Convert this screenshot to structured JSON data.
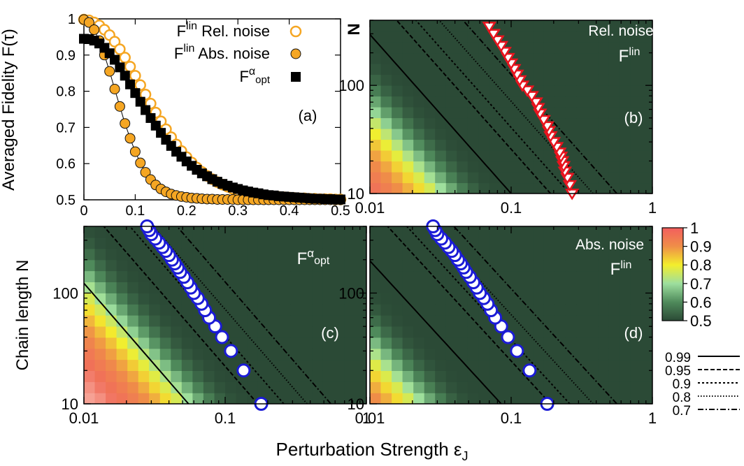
{
  "figure": {
    "xlabel_main": "Perturbation Strength ε",
    "xlabel_sub": "J",
    "ylabel_left_bottom": "Chain length N",
    "ylabel_right_top": "N"
  },
  "colorbar": {
    "ticks": [
      "1",
      "0.9",
      "0.8",
      "0.7",
      "0.6",
      "0.5"
    ],
    "tick_values": [
      1,
      0.9,
      0.8,
      0.7,
      0.6,
      0.5
    ]
  },
  "contour_legend": {
    "items": [
      {
        "label": "0.99",
        "dash": "solid"
      },
      {
        "label": "0.95",
        "dash": "dashed"
      },
      {
        "label": "0.9",
        "dash": "dotted-coarse"
      },
      {
        "label": "0.8",
        "dash": "dotted-fine"
      },
      {
        "label": "0.7",
        "dash": "dash-dot"
      }
    ]
  },
  "chart_data": [
    {
      "panel": "(a)",
      "type": "scatter",
      "ylabel": "Averaged Fidelity F(τ)",
      "xlim": [
        0,
        0.5
      ],
      "ylim": [
        0.5,
        1.0
      ],
      "xticks": [
        "0",
        "0.1",
        "0.2",
        "0.3",
        "0.4",
        "0.5"
      ],
      "yticks": [
        "0.5",
        "0.6",
        "0.7",
        "0.8",
        "0.9",
        "1"
      ],
      "legend": [
        {
          "base": "F",
          "sup": "lin",
          "tail": " Rel. noise",
          "marker": "open-circle",
          "color": "#f5a623"
        },
        {
          "base": "F",
          "sup": "lin",
          "tail": " Abs. noise",
          "marker": "filled-circle",
          "color": "#f5a623"
        },
        {
          "base": "F",
          "sup": "α",
          "sub": "opt",
          "tail": "",
          "marker": "filled-square",
          "color": "#000000"
        }
      ],
      "series": [
        {
          "name": "F^lin Rel. noise",
          "x": [
            0.0,
            0.01,
            0.02,
            0.03,
            0.04,
            0.05,
            0.06,
            0.07,
            0.08,
            0.09,
            0.1,
            0.11,
            0.12,
            0.13,
            0.14,
            0.15,
            0.16,
            0.17,
            0.18,
            0.19,
            0.2,
            0.21,
            0.22,
            0.23,
            0.24,
            0.25,
            0.26,
            0.27,
            0.28,
            0.29,
            0.3,
            0.31,
            0.32,
            0.33,
            0.34,
            0.35,
            0.36,
            0.37,
            0.38,
            0.39,
            0.4,
            0.41,
            0.42,
            0.43,
            0.44,
            0.45,
            0.46,
            0.47,
            0.48,
            0.49,
            0.5
          ],
          "y": [
            0.998,
            0.996,
            0.99,
            0.982,
            0.97,
            0.955,
            0.937,
            0.916,
            0.893,
            0.868,
            0.843,
            0.817,
            0.791,
            0.766,
            0.741,
            0.717,
            0.695,
            0.673,
            0.653,
            0.635,
            0.618,
            0.603,
            0.589,
            0.577,
            0.566,
            0.557,
            0.549,
            0.542,
            0.536,
            0.53,
            0.526,
            0.522,
            0.519,
            0.516,
            0.514,
            0.512,
            0.51,
            0.509,
            0.508,
            0.507,
            0.506,
            0.505,
            0.504,
            0.504,
            0.503,
            0.503,
            0.502,
            0.502,
            0.502,
            0.501,
            0.501
          ]
        },
        {
          "name": "F^lin Abs. noise",
          "x": [
            0.0,
            0.01,
            0.02,
            0.03,
            0.04,
            0.05,
            0.06,
            0.07,
            0.08,
            0.09,
            0.1,
            0.11,
            0.12,
            0.13,
            0.14,
            0.15,
            0.16,
            0.17,
            0.18,
            0.19,
            0.2,
            0.21,
            0.22,
            0.23,
            0.24,
            0.25,
            0.26,
            0.27,
            0.28,
            0.29,
            0.3,
            0.31,
            0.32,
            0.33,
            0.34,
            0.35,
            0.36,
            0.37,
            0.38,
            0.39,
            0.4,
            0.41,
            0.42,
            0.43,
            0.44,
            0.45,
            0.46,
            0.47,
            0.48,
            0.49,
            0.5
          ],
          "y": [
            0.998,
            0.99,
            0.97,
            0.94,
            0.9,
            0.855,
            0.806,
            0.758,
            0.711,
            0.67,
            0.633,
            0.602,
            0.576,
            0.556,
            0.541,
            0.53,
            0.522,
            0.516,
            0.512,
            0.509,
            0.507,
            0.505,
            0.504,
            0.503,
            0.502,
            0.502,
            0.501,
            0.501,
            0.501,
            0.501,
            0.5,
            0.5,
            0.5,
            0.5,
            0.5,
            0.5,
            0.5,
            0.5,
            0.5,
            0.5,
            0.5,
            0.5,
            0.5,
            0.5,
            0.5,
            0.5,
            0.5,
            0.5,
            0.5,
            0.5,
            0.5
          ]
        },
        {
          "name": "F^α_opt",
          "x": [
            0.0,
            0.01,
            0.02,
            0.03,
            0.04,
            0.05,
            0.06,
            0.07,
            0.08,
            0.09,
            0.1,
            0.11,
            0.12,
            0.13,
            0.14,
            0.15,
            0.16,
            0.17,
            0.18,
            0.19,
            0.2,
            0.21,
            0.22,
            0.23,
            0.24,
            0.25,
            0.26,
            0.27,
            0.28,
            0.29,
            0.3,
            0.31,
            0.32,
            0.33,
            0.34,
            0.35,
            0.36,
            0.37,
            0.38,
            0.39,
            0.4,
            0.41,
            0.42,
            0.43,
            0.44,
            0.45,
            0.46,
            0.47,
            0.48,
            0.49,
            0.5
          ],
          "y": [
            0.945,
            0.944,
            0.94,
            0.932,
            0.92,
            0.905,
            0.887,
            0.866,
            0.843,
            0.819,
            0.795,
            0.771,
            0.748,
            0.726,
            0.705,
            0.685,
            0.666,
            0.649,
            0.633,
            0.619,
            0.606,
            0.594,
            0.583,
            0.573,
            0.565,
            0.557,
            0.55,
            0.544,
            0.539,
            0.534,
            0.53,
            0.526,
            0.523,
            0.52,
            0.518,
            0.515,
            0.513,
            0.512,
            0.51,
            0.509,
            0.508,
            0.507,
            0.506,
            0.505,
            0.504,
            0.503,
            0.503,
            0.502,
            0.502,
            0.501,
            0.501
          ]
        }
      ]
    },
    {
      "panel": "(b)",
      "type": "heatmap",
      "title_line1": "Rel. noise",
      "title_base": "F",
      "title_sup": "lin",
      "xscale": "log",
      "yscale": "log",
      "xlim": [
        0.01,
        1
      ],
      "ylim": [
        10,
        400
      ],
      "xticks": [
        "0.01",
        "0.1",
        "1"
      ],
      "yticks": [
        "10",
        "100"
      ],
      "fidelity_scale_eps": 0.034,
      "contours_eps_at_N10": [
        0.1,
        0.19,
        0.26,
        0.38,
        0.56
      ],
      "contour_slope": 0.68,
      "markers": {
        "type": "open-triangle-down",
        "color": "#e8141e",
        "eps": [
          0.27,
          0.26,
          0.25,
          0.24,
          0.235,
          0.23,
          0.225,
          0.22,
          0.21,
          0.2,
          0.19,
          0.185,
          0.18,
          0.17,
          0.16,
          0.155,
          0.15,
          0.14,
          0.13,
          0.12,
          0.115,
          0.11,
          0.105,
          0.1,
          0.095,
          0.09,
          0.085,
          0.08,
          0.075,
          0.07
        ],
        "N": [
          10,
          12,
          14,
          16,
          18,
          20,
          22,
          24,
          27,
          30,
          34,
          38,
          42,
          48,
          55,
          62,
          70,
          80,
          90,
          100,
          112,
          126,
          142,
          160,
          180,
          205,
          232,
          262,
          300,
          350
        ]
      }
    },
    {
      "panel": "(c)",
      "type": "heatmap",
      "title_base": "F",
      "title_sup": "α",
      "title_sub": "opt",
      "xscale": "log",
      "yscale": "log",
      "xlim": [
        0.01,
        1
      ],
      "ylim": [
        10,
        400
      ],
      "xticks": [
        "0.01",
        "0.1",
        "1"
      ],
      "yticks": [
        "10",
        "100"
      ],
      "fidelity_scale_eps": 0.058,
      "contours_eps_at_N10": [
        0.055,
        0.17,
        0.26,
        0.38,
        0.56
      ],
      "contour_slope": 0.68,
      "markers": {
        "type": "open-circle",
        "color": "#1b1bd6",
        "eps": [
          0.18,
          0.135,
          0.11,
          0.095,
          0.085,
          0.077,
          0.072,
          0.068,
          0.064,
          0.06,
          0.057,
          0.054,
          0.051,
          0.048,
          0.046,
          0.044,
          0.042,
          0.04,
          0.038,
          0.036,
          0.034,
          0.032,
          0.03,
          0.029,
          0.028
        ],
        "N": [
          10,
          20,
          30,
          40,
          50,
          60,
          70,
          80,
          90,
          100,
          112,
          125,
          140,
          155,
          170,
          185,
          200,
          220,
          240,
          260,
          285,
          310,
          340,
          370,
          400
        ]
      }
    },
    {
      "panel": "(d)",
      "type": "heatmap",
      "title_line1": "Abs. noise",
      "title_base": "F",
      "title_sup": "lin",
      "xscale": "log",
      "yscale": "log",
      "xlim": [
        0.01,
        1
      ],
      "ylim": [
        10,
        400
      ],
      "xticks": [
        "0.01",
        "0.1",
        "1"
      ],
      "yticks": [
        "10",
        "100"
      ],
      "fidelity_scale_eps": 0.024,
      "contours_eps_at_N10": [
        0.085,
        0.19,
        0.26,
        0.38,
        0.56
      ],
      "contour_slope": 0.72,
      "markers": {
        "type": "open-circle",
        "color": "#1b1bd6",
        "eps": [
          0.18,
          0.135,
          0.11,
          0.095,
          0.085,
          0.077,
          0.072,
          0.068,
          0.064,
          0.06,
          0.057,
          0.054,
          0.051,
          0.048,
          0.046,
          0.044,
          0.042,
          0.04,
          0.038,
          0.036,
          0.034,
          0.032,
          0.03,
          0.029,
          0.028
        ],
        "N": [
          10,
          20,
          30,
          40,
          50,
          60,
          70,
          80,
          90,
          100,
          112,
          125,
          140,
          155,
          170,
          185,
          200,
          220,
          240,
          260,
          285,
          310,
          340,
          370,
          400
        ]
      }
    }
  ]
}
